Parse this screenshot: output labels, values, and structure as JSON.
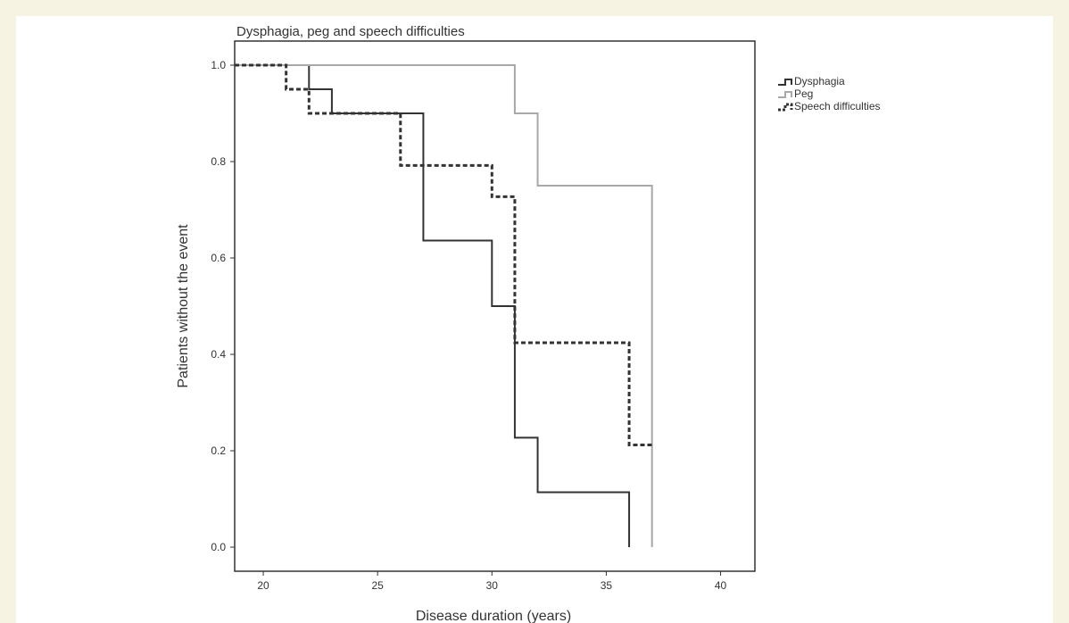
{
  "chart_data": {
    "type": "line",
    "title": "Dysphagia, peg and speech difficulties",
    "xlabel": "Disease duration (years)",
    "ylabel": "Patients without the event",
    "xlim": [
      18.75,
      41.5
    ],
    "ylim": [
      -0.05,
      1.05
    ],
    "xticks": [
      "20",
      "25",
      "30",
      "35",
      "40"
    ],
    "yticks": [
      "0.0",
      "0.2",
      "0.4",
      "0.6",
      "0.8",
      "1.0"
    ],
    "step": true,
    "legend_position": "top-right",
    "series": [
      {
        "name": "Dysphagia",
        "color": "#333333",
        "dash": "solid",
        "x": [
          18.75,
          22,
          23,
          27,
          30,
          31,
          32,
          36,
          36
        ],
        "y": [
          1.0,
          0.95,
          0.9,
          0.636,
          0.5,
          0.227,
          0.114,
          0.114,
          0.0
        ]
      },
      {
        "name": "Peg",
        "color": "#a8a8a8",
        "dash": "solid",
        "x": [
          18.75,
          31,
          32,
          37,
          37
        ],
        "y": [
          1.0,
          0.9,
          0.75,
          0.75,
          0.0
        ]
      },
      {
        "name": "Speech difficulties",
        "color": "#333333",
        "dash": "dashed",
        "x": [
          18.75,
          21,
          22,
          26,
          30,
          31,
          36,
          37
        ],
        "y": [
          1.0,
          0.95,
          0.9,
          0.792,
          0.727,
          0.424,
          0.212,
          0.212
        ]
      }
    ]
  }
}
